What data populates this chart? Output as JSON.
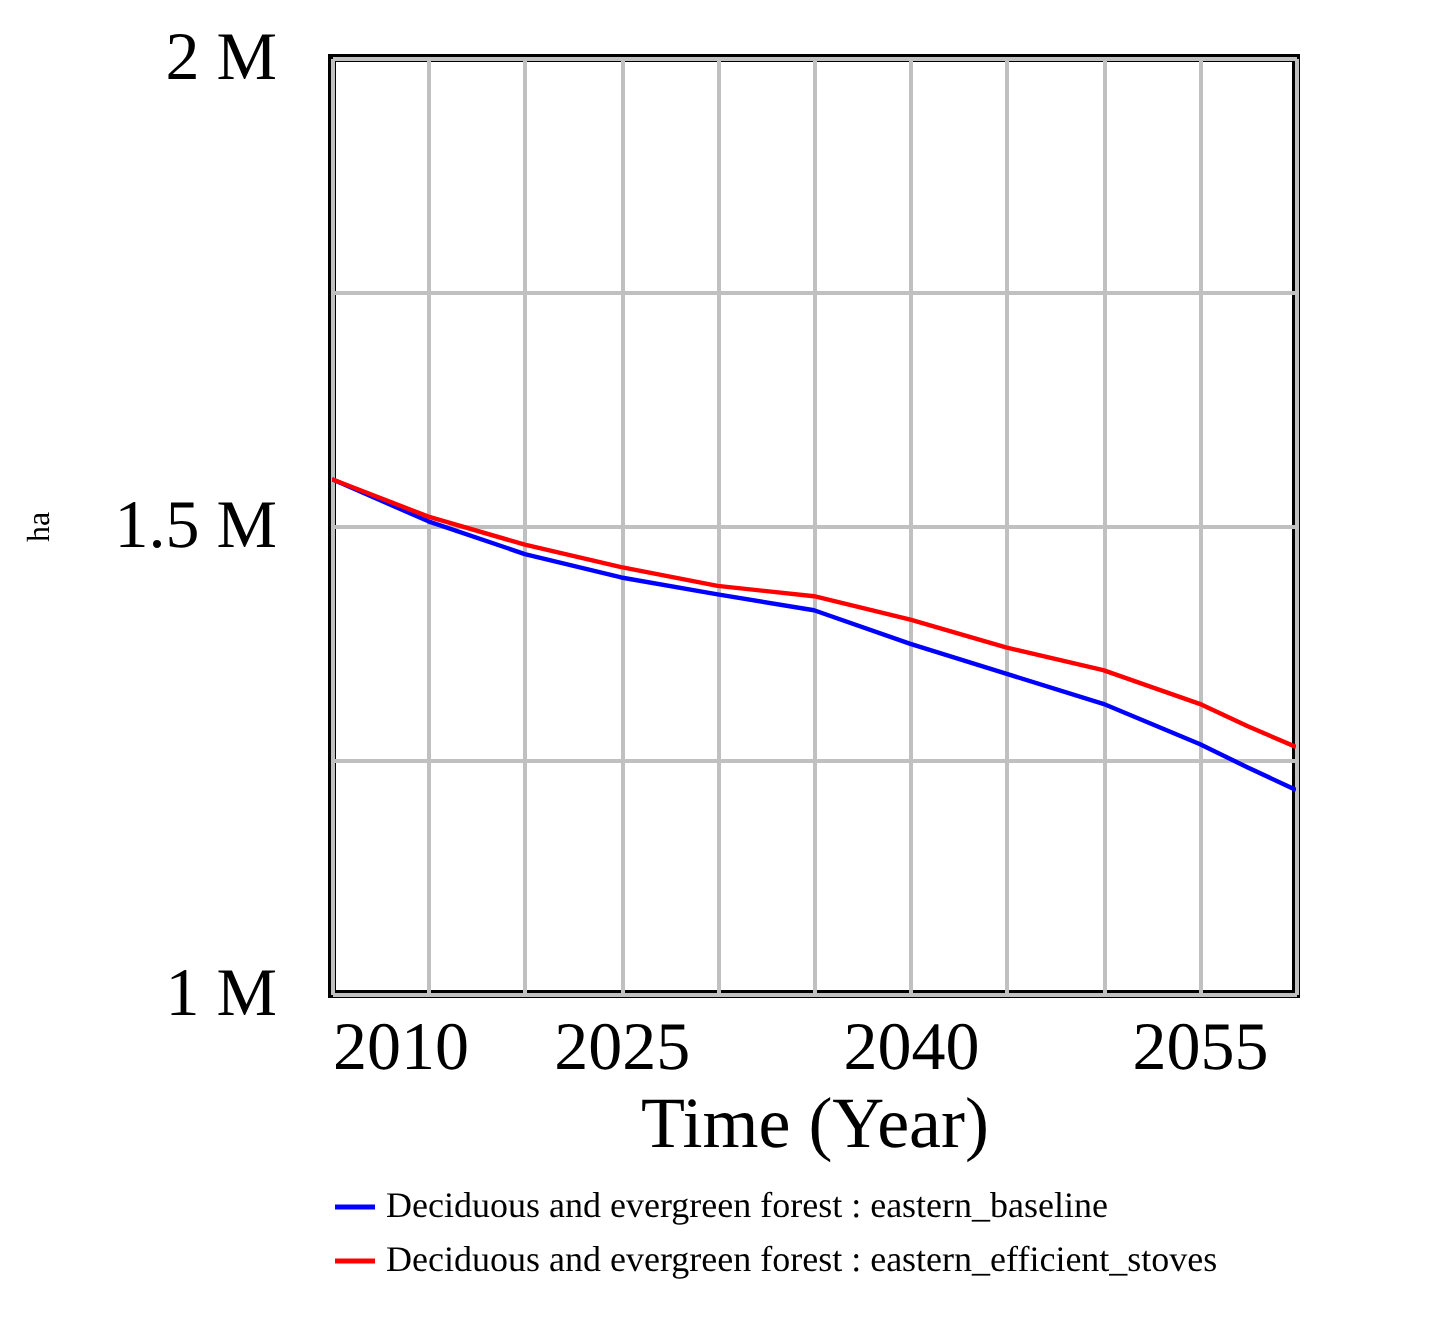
{
  "chart_data": {
    "type": "line",
    "xlabel": "Time (Year)",
    "ylabel": "ha",
    "x": [
      2010,
      2015,
      2020,
      2025,
      2030,
      2035,
      2040,
      2045,
      2050,
      2055,
      2057.5,
      2060
    ],
    "series": [
      {
        "name": "Deciduous and evergreen forest : eastern_baseline",
        "color": "#0000ff",
        "values": [
          1.55,
          1.505,
          1.47,
          1.445,
          1.427,
          1.41,
          1.374,
          1.342,
          1.31,
          1.267,
          1.242,
          1.218
        ]
      },
      {
        "name": "Deciduous and evergreen forest : eastern_efficient_stoves",
        "color": "#ff0000",
        "values": [
          1.55,
          1.51,
          1.48,
          1.456,
          1.436,
          1.425,
          1.4,
          1.37,
          1.346,
          1.31,
          1.286,
          1.264
        ]
      }
    ],
    "xlim": [
      2010,
      2060
    ],
    "xticks": [
      2010,
      {
        "value": 2015,
        "label": null
      },
      {
        "value": 2020,
        "label": null
      },
      2025,
      {
        "value": 2030,
        "label": null
      },
      {
        "value": 2035,
        "label": null
      },
      2040,
      {
        "value": 2045,
        "label": null
      },
      {
        "value": 2050,
        "label": null
      },
      2055,
      {
        "value": 2060,
        "label": null
      }
    ],
    "ylim": [
      1,
      2
    ],
    "yticks": [
      {
        "value": 1,
        "label": "1 M"
      },
      {
        "value": 1.25,
        "label": null
      },
      {
        "value": 1.5,
        "label": "1.5 M"
      },
      {
        "value": 1.75,
        "label": null
      },
      {
        "value": 2,
        "label": "2 M"
      }
    ],
    "grid": true,
    "legend": "bottom",
    "marker": "none",
    "line_style": "solid"
  }
}
